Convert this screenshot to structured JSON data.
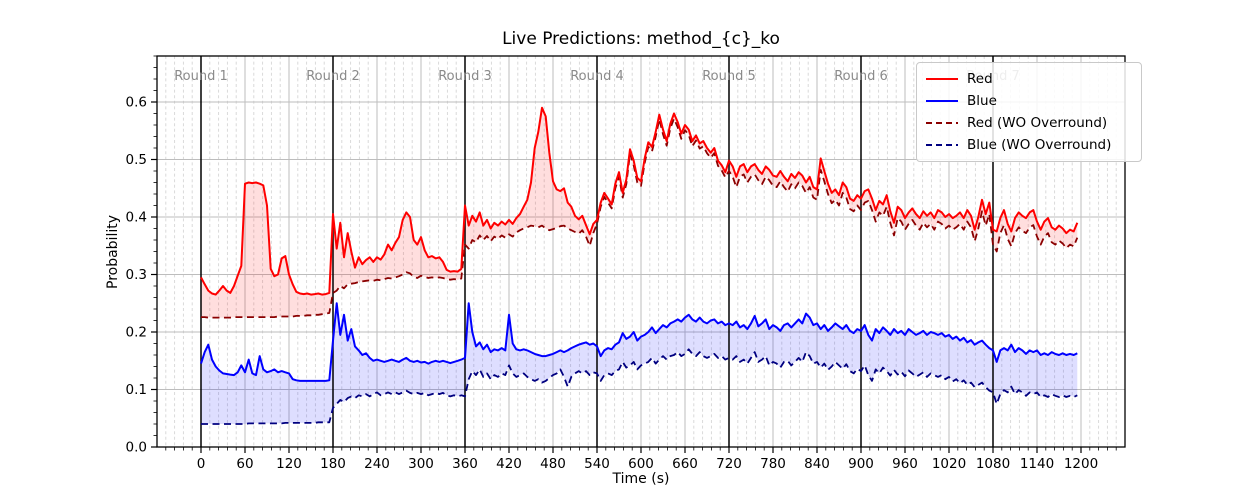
{
  "title": "Live Predictions: method_{c}_ko",
  "chart_data": {
    "type": "line",
    "title": "Live Predictions: method_{c}_ko",
    "xlabel": "Time (s)",
    "ylabel": "Probability",
    "xlim": [
      -60,
      1260
    ],
    "ylim": [
      0,
      0.68
    ],
    "xticks": [
      0,
      60,
      120,
      180,
      240,
      300,
      360,
      420,
      480,
      540,
      600,
      660,
      720,
      780,
      840,
      900,
      960,
      1020,
      1080,
      1140,
      1200
    ],
    "yticks": [
      0.0,
      0.1,
      0.2,
      0.3,
      0.4,
      0.5,
      0.6
    ],
    "x_minor_step": 12,
    "y_minor_step": 0.02,
    "grid": {
      "major_color": "#bdbdbd",
      "minor_color": "#d6d6d6",
      "minor_dashed_axis": "x"
    },
    "round_markers": [
      {
        "label": "Round 1",
        "time": 0
      },
      {
        "label": "Round 2",
        "time": 180
      },
      {
        "label": "Round 3",
        "time": 360
      },
      {
        "label": "Round 4",
        "time": 540
      },
      {
        "label": "Round 5",
        "time": 720
      },
      {
        "label": "Round 6",
        "time": 900
      },
      {
        "label": "Round 7",
        "time": 1080
      }
    ],
    "round_label_color": "#8a8a8a",
    "round_label_y": 0.638,
    "legend": {
      "position": "upper right",
      "entries": [
        {
          "label": "Red",
          "series": 0
        },
        {
          "label": "Blue",
          "series": 1
        },
        {
          "label": "Red (WO Overround)",
          "series": 2
        },
        {
          "label": "Blue (WO Overround)",
          "series": 3
        }
      ]
    },
    "fills": [
      {
        "upper": 0,
        "lower": 2,
        "color": "#ff0000",
        "opacity": 0.13
      },
      {
        "upper": 1,
        "lower": 3,
        "color": "#0000ff",
        "opacity": 0.13
      }
    ],
    "series": [
      {
        "name": "Red",
        "color": "#ff0000",
        "dash": false,
        "width": 2.0,
        "t0": 0,
        "dt": 5,
        "values": [
          0.295,
          0.283,
          0.272,
          0.267,
          0.265,
          0.272,
          0.28,
          0.272,
          0.268,
          0.28,
          0.298,
          0.315,
          0.458,
          0.46,
          0.459,
          0.46,
          0.458,
          0.455,
          0.42,
          0.31,
          0.297,
          0.3,
          0.328,
          0.332,
          0.3,
          0.283,
          0.27,
          0.267,
          0.266,
          0.267,
          0.265,
          0.266,
          0.267,
          0.265,
          0.266,
          0.268,
          0.405,
          0.345,
          0.39,
          0.33,
          0.372,
          0.34,
          0.312,
          0.33,
          0.318,
          0.325,
          0.33,
          0.322,
          0.33,
          0.326,
          0.335,
          0.352,
          0.342,
          0.355,
          0.365,
          0.395,
          0.408,
          0.4,
          0.36,
          0.352,
          0.365,
          0.342,
          0.33,
          0.332,
          0.328,
          0.33,
          0.322,
          0.308,
          0.305,
          0.306,
          0.305,
          0.31,
          0.42,
          0.385,
          0.402,
          0.392,
          0.408,
          0.385,
          0.395,
          0.38,
          0.39,
          0.385,
          0.392,
          0.387,
          0.395,
          0.388,
          0.398,
          0.405,
          0.418,
          0.43,
          0.46,
          0.52,
          0.548,
          0.59,
          0.575,
          0.512,
          0.462,
          0.448,
          0.445,
          0.45,
          0.425,
          0.418,
          0.402,
          0.396,
          0.402,
          0.386,
          0.37,
          0.388,
          0.395,
          0.425,
          0.442,
          0.432,
          0.422,
          0.458,
          0.478,
          0.442,
          0.465,
          0.518,
          0.498,
          0.468,
          0.462,
          0.502,
          0.53,
          0.522,
          0.548,
          0.578,
          0.552,
          0.532,
          0.562,
          0.58,
          0.565,
          0.545,
          0.56,
          0.552,
          0.532,
          0.542,
          0.528,
          0.532,
          0.52,
          0.512,
          0.52,
          0.498,
          0.49,
          0.478,
          0.498,
          0.488,
          0.47,
          0.488,
          0.492,
          0.478,
          0.488,
          0.492,
          0.482,
          0.475,
          0.488,
          0.482,
          0.472,
          0.47,
          0.48,
          0.47,
          0.462,
          0.475,
          0.468,
          0.478,
          0.472,
          0.46,
          0.47,
          0.452,
          0.448,
          0.502,
          0.48,
          0.458,
          0.442,
          0.448,
          0.438,
          0.46,
          0.452,
          0.432,
          0.428,
          0.438,
          0.432,
          0.445,
          0.448,
          0.432,
          0.412,
          0.428,
          0.422,
          0.438,
          0.41,
          0.39,
          0.418,
          0.412,
          0.398,
          0.408,
          0.415,
          0.405,
          0.398,
          0.41,
          0.402,
          0.408,
          0.398,
          0.412,
          0.408,
          0.4,
          0.405,
          0.398,
          0.402,
          0.408,
          0.398,
          0.412,
          0.402,
          0.378,
          0.4,
          0.43,
          0.405,
          0.425,
          0.378,
          0.375,
          0.398,
          0.412,
          0.388,
          0.375,
          0.398,
          0.408,
          0.402,
          0.398,
          0.408,
          0.412,
          0.392,
          0.378,
          0.392,
          0.398,
          0.382,
          0.378,
          0.385,
          0.38,
          0.372,
          0.378,
          0.375,
          0.39
        ]
      },
      {
        "name": "Blue",
        "color": "#0000ff",
        "dash": false,
        "width": 2.0,
        "t0": 0,
        "dt": 5,
        "values": [
          0.145,
          0.165,
          0.178,
          0.152,
          0.14,
          0.133,
          0.128,
          0.127,
          0.126,
          0.125,
          0.13,
          0.142,
          0.13,
          0.152,
          0.128,
          0.125,
          0.158,
          0.135,
          0.13,
          0.132,
          0.135,
          0.13,
          0.132,
          0.13,
          0.128,
          0.118,
          0.116,
          0.115,
          0.115,
          0.115,
          0.115,
          0.115,
          0.115,
          0.115,
          0.115,
          0.116,
          0.185,
          0.25,
          0.195,
          0.23,
          0.185,
          0.205,
          0.175,
          0.168,
          0.16,
          0.163,
          0.155,
          0.15,
          0.152,
          0.15,
          0.148,
          0.15,
          0.152,
          0.15,
          0.148,
          0.152,
          0.155,
          0.15,
          0.148,
          0.15,
          0.147,
          0.148,
          0.145,
          0.148,
          0.15,
          0.148,
          0.15,
          0.148,
          0.146,
          0.148,
          0.15,
          0.152,
          0.155,
          0.25,
          0.2,
          0.175,
          0.182,
          0.17,
          0.178,
          0.165,
          0.17,
          0.168,
          0.172,
          0.168,
          0.23,
          0.18,
          0.17,
          0.168,
          0.17,
          0.168,
          0.165,
          0.162,
          0.16,
          0.158,
          0.158,
          0.16,
          0.162,
          0.165,
          0.168,
          0.165,
          0.168,
          0.172,
          0.175,
          0.178,
          0.18,
          0.182,
          0.178,
          0.18,
          0.175,
          0.158,
          0.168,
          0.172,
          0.17,
          0.178,
          0.182,
          0.198,
          0.188,
          0.192,
          0.2,
          0.185,
          0.192,
          0.195,
          0.2,
          0.208,
          0.198,
          0.205,
          0.212,
          0.208,
          0.215,
          0.218,
          0.222,
          0.218,
          0.225,
          0.23,
          0.222,
          0.218,
          0.225,
          0.218,
          0.215,
          0.22,
          0.222,
          0.215,
          0.218,
          0.212,
          0.215,
          0.212,
          0.218,
          0.208,
          0.212,
          0.205,
          0.215,
          0.228,
          0.21,
          0.215,
          0.222,
          0.205,
          0.212,
          0.208,
          0.202,
          0.212,
          0.215,
          0.208,
          0.215,
          0.222,
          0.215,
          0.232,
          0.225,
          0.212,
          0.215,
          0.205,
          0.212,
          0.202,
          0.208,
          0.215,
          0.21,
          0.205,
          0.212,
          0.202,
          0.198,
          0.205,
          0.202,
          0.212,
          0.195,
          0.185,
          0.205,
          0.198,
          0.208,
          0.202,
          0.195,
          0.205,
          0.198,
          0.202,
          0.195,
          0.205,
          0.2,
          0.195,
          0.198,
          0.202,
          0.195,
          0.2,
          0.198,
          0.195,
          0.198,
          0.192,
          0.195,
          0.188,
          0.192,
          0.185,
          0.19,
          0.182,
          0.186,
          0.178,
          0.182,
          0.185,
          0.178,
          0.172,
          0.168,
          0.148,
          0.168,
          0.172,
          0.168,
          0.178,
          0.165,
          0.172,
          0.168,
          0.162,
          0.168,
          0.165,
          0.168,
          0.16,
          0.163,
          0.16,
          0.165,
          0.162,
          0.16,
          0.163,
          0.16,
          0.162,
          0.16,
          0.163
        ]
      },
      {
        "name": "Red (WO Overround)",
        "color": "#8b0000",
        "dash": true,
        "width": 1.8,
        "t0": 0,
        "dt": 5,
        "values": [
          0.226,
          0.226,
          0.225,
          0.225,
          0.225,
          0.225,
          0.225,
          0.225,
          0.225,
          0.226,
          0.226,
          0.226,
          0.226,
          0.226,
          0.226,
          0.226,
          0.226,
          0.226,
          0.226,
          0.226,
          0.226,
          0.227,
          0.227,
          0.227,
          0.227,
          0.227,
          0.228,
          0.228,
          0.228,
          0.229,
          0.229,
          0.23,
          0.23,
          0.231,
          0.232,
          0.233,
          0.268,
          0.272,
          0.28,
          0.276,
          0.283,
          0.284,
          0.285,
          0.287,
          0.288,
          0.289,
          0.29,
          0.289,
          0.291,
          0.29,
          0.292,
          0.294,
          0.293,
          0.295,
          0.297,
          0.3,
          0.304,
          0.302,
          0.296,
          0.294,
          0.298,
          0.296,
          0.294,
          0.295,
          0.294,
          0.295,
          0.294,
          0.292,
          0.291,
          0.292,
          0.291,
          0.293,
          0.352,
          0.345,
          0.36,
          0.356,
          0.368,
          0.36,
          0.367,
          0.358,
          0.366,
          0.362,
          0.368,
          0.364,
          0.37,
          0.366,
          0.373,
          0.377,
          0.38,
          0.382,
          0.385,
          0.384,
          0.382,
          0.385,
          0.38,
          0.377,
          0.379,
          0.381,
          0.384,
          0.385,
          0.38,
          0.377,
          0.374,
          0.371,
          0.377,
          0.366,
          0.35,
          0.372,
          0.388,
          0.418,
          0.435,
          0.425,
          0.415,
          0.45,
          0.47,
          0.434,
          0.457,
          0.51,
          0.49,
          0.46,
          0.454,
          0.494,
          0.522,
          0.514,
          0.54,
          0.57,
          0.544,
          0.524,
          0.554,
          0.571,
          0.556,
          0.536,
          0.551,
          0.543,
          0.523,
          0.533,
          0.519,
          0.523,
          0.511,
          0.503,
          0.511,
          0.489,
          0.481,
          0.469,
          0.48,
          0.47,
          0.452,
          0.47,
          0.474,
          0.46,
          0.47,
          0.474,
          0.464,
          0.457,
          0.47,
          0.464,
          0.454,
          0.452,
          0.462,
          0.452,
          0.444,
          0.457,
          0.45,
          0.46,
          0.454,
          0.442,
          0.452,
          0.434,
          0.43,
          0.482,
          0.462,
          0.44,
          0.424,
          0.43,
          0.42,
          0.442,
          0.434,
          0.414,
          0.41,
          0.42,
          0.412,
          0.425,
          0.428,
          0.412,
          0.392,
          0.408,
          0.402,
          0.418,
          0.39,
          0.368,
          0.398,
          0.392,
          0.378,
          0.388,
          0.395,
          0.385,
          0.378,
          0.39,
          0.382,
          0.388,
          0.378,
          0.392,
          0.388,
          0.38,
          0.385,
          0.378,
          0.382,
          0.388,
          0.378,
          0.392,
          0.382,
          0.358,
          0.38,
          0.41,
          0.385,
          0.405,
          0.352,
          0.34,
          0.372,
          0.386,
          0.362,
          0.349,
          0.372,
          0.382,
          0.376,
          0.372,
          0.382,
          0.386,
          0.366,
          0.352,
          0.366,
          0.372,
          0.356,
          0.352,
          0.359,
          0.354,
          0.346,
          0.352,
          0.349,
          0.364
        ]
      },
      {
        "name": "Blue (WO Overround)",
        "color": "#000080",
        "dash": true,
        "width": 1.8,
        "t0": 0,
        "dt": 5,
        "values": [
          0.04,
          0.04,
          0.04,
          0.04,
          0.04,
          0.04,
          0.04,
          0.04,
          0.04,
          0.04,
          0.04,
          0.04,
          0.04,
          0.041,
          0.041,
          0.041,
          0.041,
          0.041,
          0.041,
          0.041,
          0.041,
          0.041,
          0.041,
          0.042,
          0.042,
          0.042,
          0.042,
          0.042,
          0.042,
          0.042,
          0.042,
          0.042,
          0.043,
          0.043,
          0.043,
          0.043,
          0.068,
          0.075,
          0.082,
          0.078,
          0.085,
          0.088,
          0.085,
          0.09,
          0.088,
          0.092,
          0.088,
          0.092,
          0.095,
          0.09,
          0.092,
          0.095,
          0.092,
          0.095,
          0.092,
          0.095,
          0.098,
          0.094,
          0.092,
          0.094,
          0.092,
          0.094,
          0.09,
          0.092,
          0.094,
          0.092,
          0.094,
          0.09,
          0.088,
          0.09,
          0.088,
          0.09,
          0.088,
          0.118,
          0.132,
          0.125,
          0.135,
          0.122,
          0.128,
          0.118,
          0.125,
          0.122,
          0.128,
          0.125,
          0.142,
          0.128,
          0.122,
          0.125,
          0.128,
          0.122,
          0.118,
          0.115,
          0.118,
          0.112,
          0.115,
          0.12,
          0.125,
          0.128,
          0.135,
          0.122,
          0.105,
          0.122,
          0.128,
          0.132,
          0.128,
          0.132,
          0.125,
          0.13,
          0.128,
          0.115,
          0.125,
          0.128,
          0.125,
          0.132,
          0.135,
          0.148,
          0.138,
          0.142,
          0.148,
          0.135,
          0.142,
          0.145,
          0.148,
          0.155,
          0.145,
          0.152,
          0.158,
          0.152,
          0.158,
          0.16,
          0.165,
          0.158,
          0.162,
          0.17,
          0.162,
          0.158,
          0.165,
          0.158,
          0.155,
          0.158,
          0.162,
          0.155,
          0.158,
          0.152,
          0.155,
          0.152,
          0.158,
          0.148,
          0.152,
          0.145,
          0.155,
          0.165,
          0.148,
          0.152,
          0.158,
          0.142,
          0.148,
          0.145,
          0.138,
          0.148,
          0.15,
          0.142,
          0.148,
          0.155,
          0.148,
          0.165,
          0.158,
          0.145,
          0.148,
          0.138,
          0.145,
          0.134,
          0.14,
          0.148,
          0.142,
          0.136,
          0.144,
          0.132,
          0.128,
          0.136,
          0.132,
          0.142,
          0.125,
          0.115,
          0.135,
          0.128,
          0.138,
          0.132,
          0.124,
          0.134,
          0.126,
          0.131,
          0.123,
          0.133,
          0.128,
          0.122,
          0.126,
          0.13,
          0.122,
          0.128,
          0.125,
          0.122,
          0.125,
          0.118,
          0.122,
          0.114,
          0.118,
          0.111,
          0.116,
          0.108,
          0.112,
          0.104,
          0.108,
          0.112,
          0.104,
          0.098,
          0.095,
          0.075,
          0.092,
          0.099,
          0.095,
          0.105,
          0.092,
          0.099,
          0.095,
          0.089,
          0.095,
          0.092,
          0.095,
          0.087,
          0.09,
          0.087,
          0.092,
          0.089,
          0.087,
          0.09,
          0.087,
          0.089,
          0.087,
          0.09
        ]
      }
    ]
  }
}
